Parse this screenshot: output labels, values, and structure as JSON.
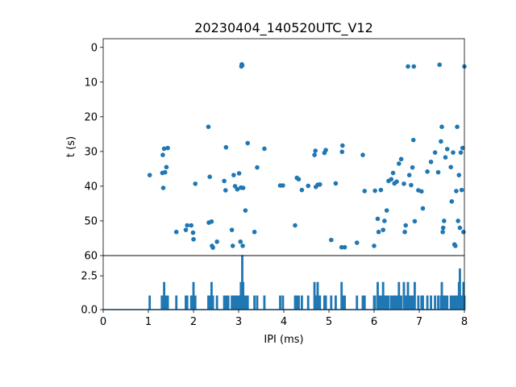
{
  "chart_data": [
    {
      "type": "scatter",
      "title": "20230404_140520UTC_V12",
      "xlabel": "",
      "ylabel": "t (s)",
      "xlim": [
        0,
        8
      ],
      "ylim": [
        60,
        -2.5
      ],
      "y_inverted": true,
      "yticks": [
        0,
        10,
        20,
        30,
        40,
        50,
        60
      ],
      "color": "#1f77b4",
      "grid": false,
      "points": [
        [
          1.03,
          36.8
        ],
        [
          1.31,
          36.2
        ],
        [
          1.32,
          31.0
        ],
        [
          1.33,
          40.5
        ],
        [
          1.35,
          29.2
        ],
        [
          1.37,
          36.0
        ],
        [
          1.4,
          34.5
        ],
        [
          1.43,
          29.0
        ],
        [
          1.62,
          53.2
        ],
        [
          1.83,
          52.6
        ],
        [
          1.86,
          51.3
        ],
        [
          1.95,
          51.3
        ],
        [
          1.99,
          53.4
        ],
        [
          2.0,
          55.3
        ],
        [
          2.04,
          39.3
        ],
        [
          2.33,
          22.9
        ],
        [
          2.34,
          50.5
        ],
        [
          2.36,
          37.3
        ],
        [
          2.4,
          50.2
        ],
        [
          2.41,
          57.2
        ],
        [
          2.43,
          57.7
        ],
        [
          2.52,
          56.0
        ],
        [
          2.68,
          38.5
        ],
        [
          2.71,
          41.2
        ],
        [
          2.72,
          28.8
        ],
        [
          2.85,
          52.6
        ],
        [
          2.87,
          57.2
        ],
        [
          2.89,
          36.8
        ],
        [
          2.92,
          40.0
        ],
        [
          2.97,
          40.9
        ],
        [
          3.01,
          36.3
        ],
        [
          3.04,
          56.0
        ],
        [
          3.05,
          40.4
        ],
        [
          3.06,
          5.5
        ],
        [
          3.07,
          4.9
        ],
        [
          3.08,
          5.2
        ],
        [
          3.09,
          57.2
        ],
        [
          3.1,
          40.5
        ],
        [
          3.15,
          47.0
        ],
        [
          3.2,
          27.6
        ],
        [
          3.35,
          53.2
        ],
        [
          3.41,
          34.6
        ],
        [
          3.57,
          29.2
        ],
        [
          3.92,
          39.8
        ],
        [
          3.98,
          39.8
        ],
        [
          4.25,
          51.3
        ],
        [
          4.29,
          37.6
        ],
        [
          4.33,
          38.0
        ],
        [
          4.4,
          41.1
        ],
        [
          4.54,
          39.9
        ],
        [
          4.68,
          31.0
        ],
        [
          4.7,
          29.8
        ],
        [
          4.71,
          40.2
        ],
        [
          4.75,
          39.6
        ],
        [
          4.8,
          39.5
        ],
        [
          4.9,
          30.4
        ],
        [
          4.93,
          29.6
        ],
        [
          5.05,
          55.5
        ],
        [
          5.15,
          39.2
        ],
        [
          5.28,
          57.6
        ],
        [
          5.29,
          30.1
        ],
        [
          5.3,
          28.3
        ],
        [
          5.35,
          57.6
        ],
        [
          5.62,
          56.3
        ],
        [
          5.75,
          31.0
        ],
        [
          5.79,
          41.4
        ],
        [
          6.0,
          57.2
        ],
        [
          6.02,
          41.3
        ],
        [
          6.08,
          49.4
        ],
        [
          6.1,
          53.2
        ],
        [
          6.15,
          41.1
        ],
        [
          6.2,
          52.6
        ],
        [
          6.23,
          50.0
        ],
        [
          6.28,
          47.0
        ],
        [
          6.32,
          38.5
        ],
        [
          6.38,
          38.0
        ],
        [
          6.42,
          36.2
        ],
        [
          6.45,
          39.2
        ],
        [
          6.5,
          38.7
        ],
        [
          6.55,
          33.5
        ],
        [
          6.6,
          32.2
        ],
        [
          6.66,
          39.3
        ],
        [
          6.68,
          53.2
        ],
        [
          6.7,
          51.3
        ],
        [
          6.75,
          5.5
        ],
        [
          6.78,
          36.8
        ],
        [
          6.82,
          39.7
        ],
        [
          6.85,
          34.6
        ],
        [
          6.87,
          26.7
        ],
        [
          6.88,
          5.5
        ],
        [
          6.9,
          50.1
        ],
        [
          6.98,
          41.2
        ],
        [
          7.05,
          41.5
        ],
        [
          7.08,
          46.4
        ],
        [
          7.18,
          35.8
        ],
        [
          7.26,
          33.0
        ],
        [
          7.35,
          30.3
        ],
        [
          7.42,
          36.0
        ],
        [
          7.45,
          5.0
        ],
        [
          7.48,
          27.1
        ],
        [
          7.5,
          22.9
        ],
        [
          7.52,
          53.2
        ],
        [
          7.53,
          52.0
        ],
        [
          7.55,
          50.0
        ],
        [
          7.58,
          31.7
        ],
        [
          7.62,
          29.3
        ],
        [
          7.7,
          34.5
        ],
        [
          7.72,
          44.4
        ],
        [
          7.75,
          30.3
        ],
        [
          7.78,
          56.8
        ],
        [
          7.8,
          57.2
        ],
        [
          7.82,
          41.4
        ],
        [
          7.84,
          22.9
        ],
        [
          7.86,
          50.0
        ],
        [
          7.88,
          36.8
        ],
        [
          7.9,
          52.0
        ],
        [
          7.92,
          30.3
        ],
        [
          7.94,
          41.1
        ],
        [
          7.96,
          29.0
        ],
        [
          7.98,
          53.2
        ],
        [
          8.0,
          5.5
        ]
      ]
    },
    {
      "type": "line",
      "xlabel": "IPI (ms)",
      "ylabel": "",
      "xlim": [
        0,
        8
      ],
      "ylim": [
        0,
        4
      ],
      "yticks": [
        0.0,
        2.5
      ],
      "ytick_labels": [
        "0.0",
        "2.5"
      ],
      "xticks": [
        0,
        1,
        2,
        3,
        4,
        5,
        6,
        7,
        8
      ],
      "color": "#1f77b4",
      "spikes": [
        [
          1.03,
          1
        ],
        [
          1.3,
          1
        ],
        [
          1.33,
          1
        ],
        [
          1.35,
          2
        ],
        [
          1.38,
          1
        ],
        [
          1.43,
          1
        ],
        [
          1.62,
          1
        ],
        [
          1.83,
          1
        ],
        [
          1.86,
          1
        ],
        [
          1.95,
          1
        ],
        [
          1.99,
          1
        ],
        [
          2.0,
          2
        ],
        [
          2.04,
          1
        ],
        [
          2.33,
          1
        ],
        [
          2.35,
          1
        ],
        [
          2.37,
          1
        ],
        [
          2.4,
          2
        ],
        [
          2.43,
          1
        ],
        [
          2.52,
          1
        ],
        [
          2.68,
          1
        ],
        [
          2.71,
          1
        ],
        [
          2.73,
          1
        ],
        [
          2.77,
          1
        ],
        [
          2.85,
          1
        ],
        [
          2.88,
          1
        ],
        [
          2.9,
          1
        ],
        [
          2.92,
          1
        ],
        [
          2.97,
          1
        ],
        [
          3.02,
          1
        ],
        [
          3.05,
          2
        ],
        [
          3.08,
          4
        ],
        [
          3.1,
          2
        ],
        [
          3.15,
          1
        ],
        [
          3.2,
          1
        ],
        [
          3.35,
          1
        ],
        [
          3.41,
          1
        ],
        [
          3.57,
          1
        ],
        [
          3.92,
          1
        ],
        [
          3.98,
          1
        ],
        [
          4.25,
          1
        ],
        [
          4.29,
          1
        ],
        [
          4.33,
          1
        ],
        [
          4.4,
          1
        ],
        [
          4.54,
          1
        ],
        [
          4.68,
          2
        ],
        [
          4.71,
          1
        ],
        [
          4.75,
          2
        ],
        [
          4.8,
          1
        ],
        [
          4.9,
          1
        ],
        [
          4.93,
          1
        ],
        [
          5.05,
          1
        ],
        [
          5.15,
          1
        ],
        [
          5.28,
          2
        ],
        [
          5.3,
          1
        ],
        [
          5.35,
          1
        ],
        [
          5.62,
          1
        ],
        [
          5.75,
          1
        ],
        [
          5.79,
          1
        ],
        [
          6.0,
          1
        ],
        [
          6.02,
          1
        ],
        [
          6.08,
          2
        ],
        [
          6.1,
          1
        ],
        [
          6.15,
          1
        ],
        [
          6.2,
          2
        ],
        [
          6.23,
          1
        ],
        [
          6.28,
          1
        ],
        [
          6.32,
          1
        ],
        [
          6.38,
          1
        ],
        [
          6.42,
          1
        ],
        [
          6.45,
          1
        ],
        [
          6.5,
          1
        ],
        [
          6.55,
          2
        ],
        [
          6.6,
          1
        ],
        [
          6.66,
          2
        ],
        [
          6.68,
          1
        ],
        [
          6.7,
          1
        ],
        [
          6.75,
          2
        ],
        [
          6.78,
          1
        ],
        [
          6.82,
          1
        ],
        [
          6.85,
          1
        ],
        [
          6.87,
          1
        ],
        [
          6.9,
          2
        ],
        [
          6.98,
          1
        ],
        [
          7.05,
          1
        ],
        [
          7.08,
          1
        ],
        [
          7.18,
          1
        ],
        [
          7.26,
          1
        ],
        [
          7.35,
          1
        ],
        [
          7.42,
          1
        ],
        [
          7.48,
          1
        ],
        [
          7.5,
          2
        ],
        [
          7.52,
          1
        ],
        [
          7.55,
          1
        ],
        [
          7.58,
          1
        ],
        [
          7.62,
          1
        ],
        [
          7.7,
          1
        ],
        [
          7.72,
          1
        ],
        [
          7.75,
          1
        ],
        [
          7.78,
          1
        ],
        [
          7.8,
          1
        ],
        [
          7.82,
          1
        ],
        [
          7.84,
          1
        ],
        [
          7.86,
          1
        ],
        [
          7.88,
          2
        ],
        [
          7.9,
          3
        ],
        [
          7.92,
          1
        ],
        [
          7.94,
          1
        ],
        [
          7.96,
          1
        ],
        [
          7.98,
          2
        ],
        [
          8.0,
          1
        ]
      ]
    }
  ]
}
